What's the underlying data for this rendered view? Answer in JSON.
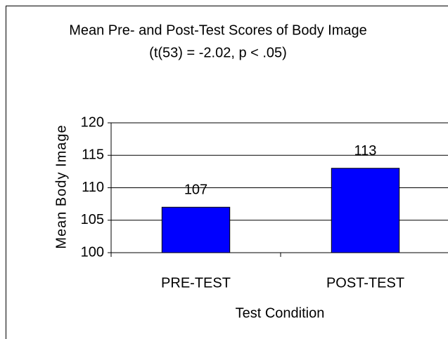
{
  "chart_data": {
    "type": "bar",
    "title": "Mean Pre- and Post-Test Scores of Body Image",
    "subtitle": "(t(53) = -2.02, p < .05)",
    "x_label": "Test Condition",
    "y_label": "Mean Body Image",
    "categories": [
      "PRE-TEST",
      "POST-TEST"
    ],
    "values": [
      107,
      113
    ],
    "color": "#0000ff",
    "ylim": [
      100,
      120
    ],
    "yticks": [
      100,
      105,
      110,
      115,
      120
    ],
    "grid": true
  }
}
